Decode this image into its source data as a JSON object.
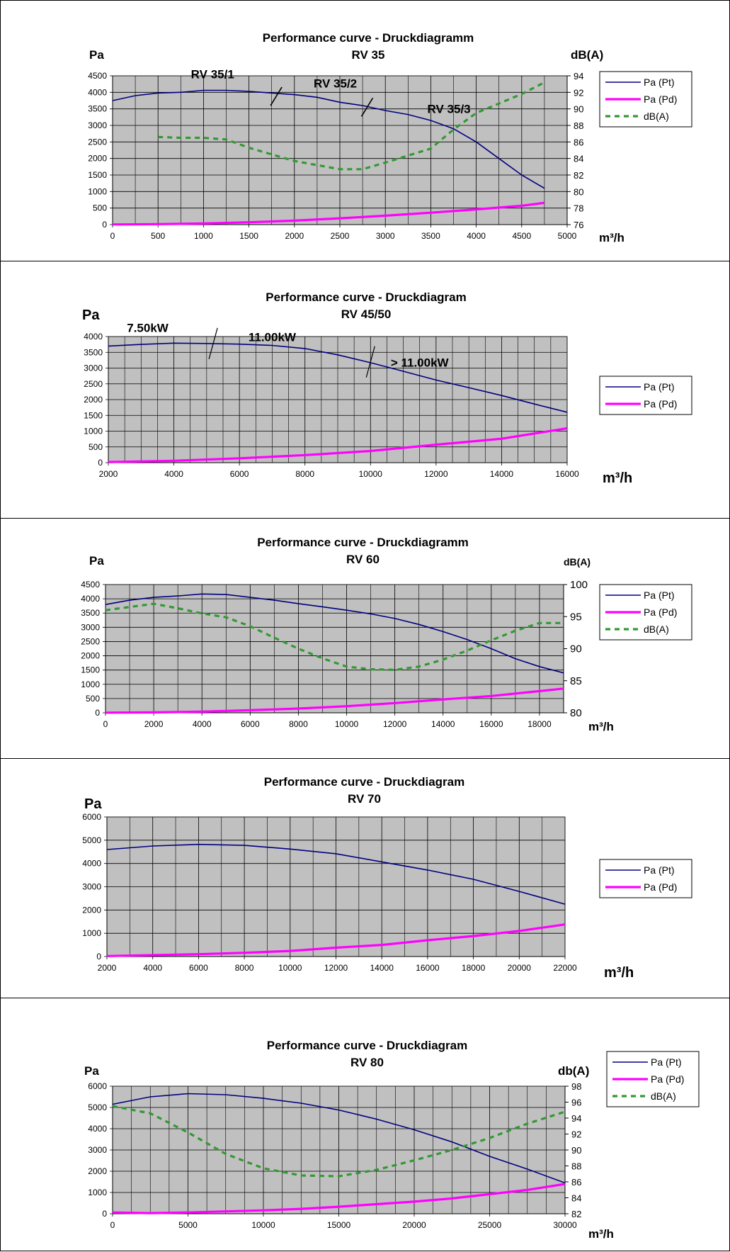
{
  "colors": {
    "plot_bg": "#c0c0c0",
    "pt_line": "#000080",
    "pd_line": "#ff00ff",
    "db_line": "#339933",
    "grid": "#000000"
  },
  "chart_data": [
    {
      "type": "line",
      "title": "Performance curve - Druckdiagramm",
      "subtitle": "RV 35",
      "ylabel": "Pa",
      "y2label": "dB(A)",
      "xlabel": "m³/h",
      "xlim": [
        0,
        5000
      ],
      "ylim": [
        0,
        4500
      ],
      "y2lim": [
        76,
        94
      ],
      "xticks": [
        0,
        500,
        1000,
        1500,
        2000,
        2500,
        3000,
        3500,
        4000,
        4500,
        5000
      ],
      "yticks": [
        0,
        500,
        1000,
        1500,
        2000,
        2500,
        3000,
        3500,
        4000,
        4500
      ],
      "y2ticks": [
        76,
        78,
        80,
        82,
        84,
        86,
        88,
        90,
        92,
        94
      ],
      "grid": true,
      "legend_position": "right",
      "series": [
        {
          "name": "Pa (Pt)",
          "axis": "left",
          "style": "solid",
          "points": [
            [
              0,
              3750
            ],
            [
              250,
              3900
            ],
            [
              500,
              3980
            ],
            [
              750,
              4000
            ],
            [
              1000,
              4060
            ],
            [
              1250,
              4060
            ],
            [
              1500,
              4030
            ],
            [
              1750,
              3980
            ],
            [
              2000,
              3930
            ],
            [
              2250,
              3850
            ],
            [
              2500,
              3700
            ],
            [
              2750,
              3600
            ],
            [
              3000,
              3450
            ],
            [
              3250,
              3330
            ],
            [
              3500,
              3150
            ],
            [
              3750,
              2900
            ],
            [
              4000,
              2500
            ],
            [
              4250,
              2000
            ],
            [
              4500,
              1500
            ],
            [
              4750,
              1100
            ]
          ]
        },
        {
          "name": "Pa (Pd)",
          "axis": "left",
          "style": "thick",
          "points": [
            [
              0,
              5
            ],
            [
              500,
              15
            ],
            [
              1000,
              35
            ],
            [
              1500,
              70
            ],
            [
              2000,
              120
            ],
            [
              2500,
              190
            ],
            [
              3000,
              270
            ],
            [
              3500,
              360
            ],
            [
              4000,
              460
            ],
            [
              4500,
              570
            ],
            [
              4750,
              660
            ]
          ]
        },
        {
          "name": "dB(A)",
          "axis": "right",
          "style": "dashed",
          "points": [
            [
              500,
              86.6
            ],
            [
              750,
              86.5
            ],
            [
              1000,
              86.5
            ],
            [
              1250,
              86.3
            ],
            [
              1500,
              85.3
            ],
            [
              2000,
              83.7
            ],
            [
              2500,
              82.7
            ],
            [
              2750,
              82.7
            ],
            [
              3000,
              83.5
            ],
            [
              3500,
              85.2
            ],
            [
              3750,
              87.5
            ],
            [
              4000,
              89.5
            ],
            [
              4500,
              91.8
            ],
            [
              4750,
              93.2
            ]
          ]
        }
      ],
      "annotations": [
        {
          "text": "RV 35/1",
          "x": 1100,
          "y": 4430
        },
        {
          "text": "RV 35/2",
          "x": 2450,
          "y": 4150
        },
        {
          "text": "RV 35/3",
          "x": 3700,
          "y": 3380
        }
      ]
    },
    {
      "type": "line",
      "title": "Performance curve - Druckdiagram",
      "subtitle": "RV 45/50",
      "ylabel": "Pa",
      "xlabel": "m³/h",
      "xlim": [
        2000,
        16000
      ],
      "ylim": [
        0,
        4000
      ],
      "xticks": [
        2000,
        4000,
        6000,
        8000,
        10000,
        12000,
        14000,
        16000
      ],
      "yticks": [
        0,
        500,
        1000,
        1500,
        2000,
        2500,
        3000,
        3500,
        4000
      ],
      "grid": true,
      "legend_position": "right",
      "series": [
        {
          "name": "Pa (Pt)",
          "axis": "left",
          "style": "solid",
          "points": [
            [
              2000,
              3700
            ],
            [
              3000,
              3750
            ],
            [
              4000,
              3790
            ],
            [
              5000,
              3780
            ],
            [
              6000,
              3760
            ],
            [
              7000,
              3720
            ],
            [
              8000,
              3620
            ],
            [
              9000,
              3420
            ],
            [
              10000,
              3170
            ],
            [
              11000,
              2900
            ],
            [
              12000,
              2620
            ],
            [
              13000,
              2380
            ],
            [
              14000,
              2130
            ],
            [
              15000,
              1860
            ],
            [
              16000,
              1600
            ]
          ]
        },
        {
          "name": "Pa (Pd)",
          "axis": "left",
          "style": "thick",
          "points": [
            [
              2000,
              20
            ],
            [
              4000,
              60
            ],
            [
              6000,
              140
            ],
            [
              8000,
              240
            ],
            [
              10000,
              370
            ],
            [
              12000,
              570
            ],
            [
              14000,
              760
            ],
            [
              16000,
              1090
            ]
          ]
        }
      ],
      "annotations": [
        {
          "text": "7.50kW",
          "x": 3200,
          "y": 4150
        },
        {
          "text": "11.00kW",
          "x": 7000,
          "y": 3850
        },
        {
          "text": "> 11.00kW",
          "x": 11500,
          "y": 3050
        }
      ]
    },
    {
      "type": "line",
      "title": "Performance curve - Druckdiagramm",
      "subtitle": "RV 60",
      "ylabel": "Pa",
      "y2label": "dB(A)",
      "xlabel": "m³/h",
      "xlim": [
        0,
        19000
      ],
      "ylim": [
        0,
        4500
      ],
      "y2lim": [
        80,
        100
      ],
      "xticks": [
        0,
        2000,
        4000,
        6000,
        8000,
        10000,
        12000,
        14000,
        16000,
        18000
      ],
      "yticks": [
        0,
        500,
        1000,
        1500,
        2000,
        2500,
        3000,
        3500,
        4000,
        4500
      ],
      "y2ticks": [
        80,
        85,
        90,
        95,
        100
      ],
      "grid": true,
      "legend_position": "right",
      "series": [
        {
          "name": "Pa (Pt)",
          "axis": "left",
          "style": "solid",
          "points": [
            [
              0,
              3800
            ],
            [
              1000,
              3950
            ],
            [
              2000,
              4050
            ],
            [
              3000,
              4100
            ],
            [
              4000,
              4170
            ],
            [
              5000,
              4150
            ],
            [
              6000,
              4050
            ],
            [
              7000,
              3950
            ],
            [
              8000,
              3830
            ],
            [
              9000,
              3720
            ],
            [
              10000,
              3600
            ],
            [
              11000,
              3470
            ],
            [
              12000,
              3310
            ],
            [
              13000,
              3100
            ],
            [
              14000,
              2850
            ],
            [
              15000,
              2570
            ],
            [
              16000,
              2250
            ],
            [
              17000,
              1900
            ],
            [
              18000,
              1620
            ],
            [
              19000,
              1400
            ]
          ]
        },
        {
          "name": "Pa (Pd)",
          "axis": "left",
          "style": "thick",
          "points": [
            [
              0,
              5
            ],
            [
              2000,
              15
            ],
            [
              4000,
              40
            ],
            [
              6000,
              90
            ],
            [
              8000,
              150
            ],
            [
              10000,
              230
            ],
            [
              12000,
              340
            ],
            [
              14000,
              470
            ],
            [
              16000,
              590
            ],
            [
              18000,
              760
            ],
            [
              19000,
              850
            ]
          ]
        },
        {
          "name": "dB(A)",
          "axis": "right",
          "style": "dashed",
          "points": [
            [
              0,
              96
            ],
            [
              1000,
              96.5
            ],
            [
              2000,
              97
            ],
            [
              3000,
              96.3
            ],
            [
              4000,
              95.5
            ],
            [
              5000,
              94.9
            ],
            [
              6000,
              93.5
            ],
            [
              7000,
              91.7
            ],
            [
              8000,
              90
            ],
            [
              9000,
              88.5
            ],
            [
              10000,
              87.2
            ],
            [
              11000,
              86.8
            ],
            [
              12000,
              86.7
            ],
            [
              13000,
              87.2
            ],
            [
              14000,
              88.3
            ],
            [
              15000,
              89.7
            ],
            [
              16000,
              91.3
            ],
            [
              17000,
              92.8
            ],
            [
              18000,
              94
            ],
            [
              19000,
              94
            ]
          ]
        }
      ]
    },
    {
      "type": "line",
      "title": "Performance curve - Druckdiagram",
      "subtitle": "RV 70",
      "ylabel": "Pa",
      "xlabel": "m³/h",
      "xlim": [
        2000,
        22000
      ],
      "ylim": [
        0,
        6000
      ],
      "xticks": [
        2000,
        4000,
        6000,
        8000,
        10000,
        12000,
        14000,
        16000,
        18000,
        20000,
        22000
      ],
      "yticks": [
        0,
        1000,
        2000,
        3000,
        4000,
        5000,
        6000
      ],
      "grid": true,
      "legend_position": "right",
      "series": [
        {
          "name": "Pa (Pt)",
          "axis": "left",
          "style": "solid",
          "points": [
            [
              2000,
              4600
            ],
            [
              4000,
              4750
            ],
            [
              6000,
              4820
            ],
            [
              8000,
              4780
            ],
            [
              10000,
              4620
            ],
            [
              12000,
              4420
            ],
            [
              14000,
              4070
            ],
            [
              16000,
              3720
            ],
            [
              18000,
              3320
            ],
            [
              20000,
              2800
            ],
            [
              22000,
              2250
            ]
          ]
        },
        {
          "name": "Pa (Pd)",
          "axis": "left",
          "style": "thick",
          "points": [
            [
              2000,
              20
            ],
            [
              4000,
              60
            ],
            [
              6000,
              100
            ],
            [
              8000,
              160
            ],
            [
              10000,
              240
            ],
            [
              12000,
              380
            ],
            [
              14000,
              500
            ],
            [
              16000,
              700
            ],
            [
              18000,
              880
            ],
            [
              20000,
              1100
            ],
            [
              22000,
              1380
            ]
          ]
        }
      ]
    },
    {
      "type": "line",
      "title": "Performance curve - Druckdiagram",
      "subtitle": "RV 80",
      "ylabel": "Pa",
      "y2label": "db(A)",
      "xlabel": "m³/h",
      "xlim": [
        0,
        30000
      ],
      "ylim": [
        0,
        6000
      ],
      "y2lim": [
        82,
        98
      ],
      "xticks": [
        0,
        5000,
        10000,
        15000,
        20000,
        25000,
        30000
      ],
      "yticks": [
        0,
        1000,
        2000,
        3000,
        4000,
        5000,
        6000
      ],
      "y2ticks": [
        82,
        84,
        86,
        88,
        90,
        92,
        94,
        96,
        98
      ],
      "grid": true,
      "legend_position": "right",
      "series": [
        {
          "name": "Pa (Pt)",
          "axis": "left",
          "style": "solid",
          "points": [
            [
              0,
              5150
            ],
            [
              2500,
              5500
            ],
            [
              5000,
              5650
            ],
            [
              7500,
              5600
            ],
            [
              10000,
              5430
            ],
            [
              12500,
              5200
            ],
            [
              15000,
              4880
            ],
            [
              17500,
              4450
            ],
            [
              20000,
              3950
            ],
            [
              22500,
              3380
            ],
            [
              25000,
              2700
            ],
            [
              27500,
              2100
            ],
            [
              30000,
              1450
            ]
          ]
        },
        {
          "name": "Pa (Pd)",
          "axis": "left",
          "style": "thick",
          "points": [
            [
              0,
              60
            ],
            [
              2500,
              30
            ],
            [
              5000,
              60
            ],
            [
              7500,
              110
            ],
            [
              10000,
              160
            ],
            [
              12500,
              230
            ],
            [
              15000,
              330
            ],
            [
              17500,
              450
            ],
            [
              20000,
              570
            ],
            [
              22500,
              720
            ],
            [
              25000,
              920
            ],
            [
              27500,
              1120
            ],
            [
              30000,
              1400
            ]
          ]
        },
        {
          "name": "dB(A)",
          "axis": "right",
          "style": "dashed",
          "points": [
            [
              0,
              95.5
            ],
            [
              2500,
              94.6
            ],
            [
              5000,
              92.2
            ],
            [
              7500,
              89.5
            ],
            [
              10000,
              87.7
            ],
            [
              12500,
              86.8
            ],
            [
              15000,
              86.7
            ],
            [
              17500,
              87.5
            ],
            [
              20000,
              88.7
            ],
            [
              22500,
              90
            ],
            [
              25000,
              91.5
            ],
            [
              27500,
              93.3
            ],
            [
              30000,
              94.8
            ]
          ]
        }
      ]
    }
  ]
}
